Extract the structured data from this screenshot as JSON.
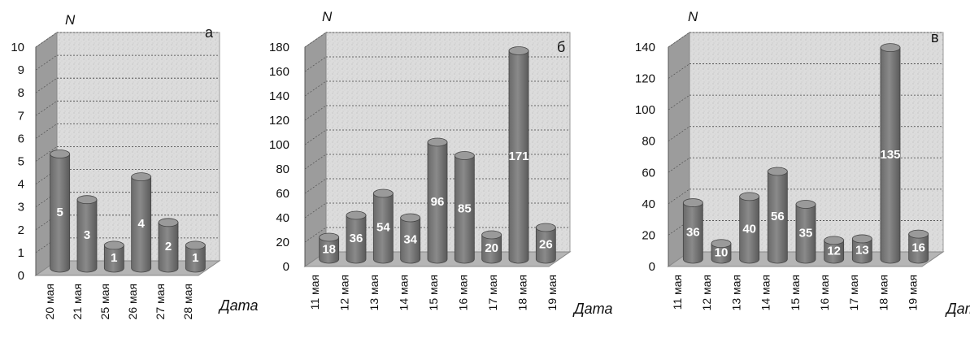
{
  "colors": {
    "bar": "#7a7a7a",
    "bar_dark": "#555555",
    "bar_top": "#9a9a9a",
    "wall": "#d9d9d9",
    "side_wall": "#9c9c9c",
    "floor": "#b5b5b5",
    "grid": "#444444"
  },
  "chart_data": [
    {
      "type": "bar",
      "panel": "а",
      "ylabel": "N",
      "xlabel": "Дата",
      "categories": [
        "20 мая",
        "21 мая",
        "25 мая",
        "26 мая",
        "27 мая",
        "28 мая"
      ],
      "values": [
        5,
        3,
        1,
        4,
        2,
        1
      ],
      "ylim": [
        0,
        10
      ],
      "yticks": [
        0,
        1,
        2,
        3,
        4,
        5,
        6,
        7,
        8,
        9,
        10
      ],
      "grid": true
    },
    {
      "type": "bar",
      "panel": "б",
      "ylabel": "N",
      "xlabel": "Дата",
      "categories": [
        "11 мая",
        "12 мая",
        "13 мая",
        "14 мая",
        "15 мая",
        "16 мая",
        "17 мая",
        "18 мая",
        "19 мая"
      ],
      "values": [
        18,
        36,
        54,
        34,
        96,
        85,
        20,
        171,
        26
      ],
      "ylim": [
        0,
        180
      ],
      "yticks": [
        0,
        20,
        40,
        60,
        80,
        100,
        120,
        140,
        160,
        180
      ],
      "grid": true
    },
    {
      "type": "bar",
      "panel": "в",
      "ylabel": "N",
      "xlabel": "Дата",
      "categories": [
        "11 мая",
        "12 мая",
        "13 мая",
        "14 мая",
        "15 мая",
        "16 мая",
        "17 мая",
        "18 мая",
        "19 мая"
      ],
      "values": [
        36,
        10,
        40,
        56,
        35,
        12,
        13,
        135,
        16
      ],
      "ylim": [
        0,
        140
      ],
      "yticks": [
        0,
        20,
        40,
        60,
        80,
        100,
        120,
        140
      ],
      "grid": true
    }
  ]
}
